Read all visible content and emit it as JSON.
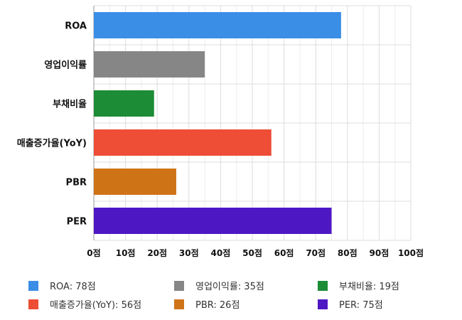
{
  "chart_data": {
    "type": "bar",
    "orientation": "horizontal",
    "categories": [
      "ROA",
      "영업이익률",
      "부채비율",
      "매출증가율(YoY)",
      "PBR",
      "PER"
    ],
    "values": [
      78,
      35,
      19,
      56,
      26,
      75
    ],
    "colors": [
      "#3a8ee6",
      "#868686",
      "#1c8c36",
      "#ee4d36",
      "#cf7317",
      "#4e17c4"
    ],
    "unit": "점",
    "xlim": [
      0,
      100
    ],
    "xticks": [
      0,
      10,
      20,
      30,
      40,
      50,
      60,
      70,
      80,
      90,
      100
    ],
    "tick_labels": [
      "0점",
      "10점",
      "20점",
      "30점",
      "40점",
      "50점",
      "60점",
      "70점",
      "80점",
      "90점",
      "100점"
    ],
    "grid": true,
    "legend": {
      "placement": "bottom",
      "columns": 3,
      "entries": [
        "ROA: 78점",
        "영업이익률: 35점",
        "부채비율: 19점",
        "매출증가율(YoY): 56점",
        "PBR: 26점",
        "PER: 75점"
      ]
    },
    "title": "",
    "xlabel": "",
    "ylabel": ""
  }
}
